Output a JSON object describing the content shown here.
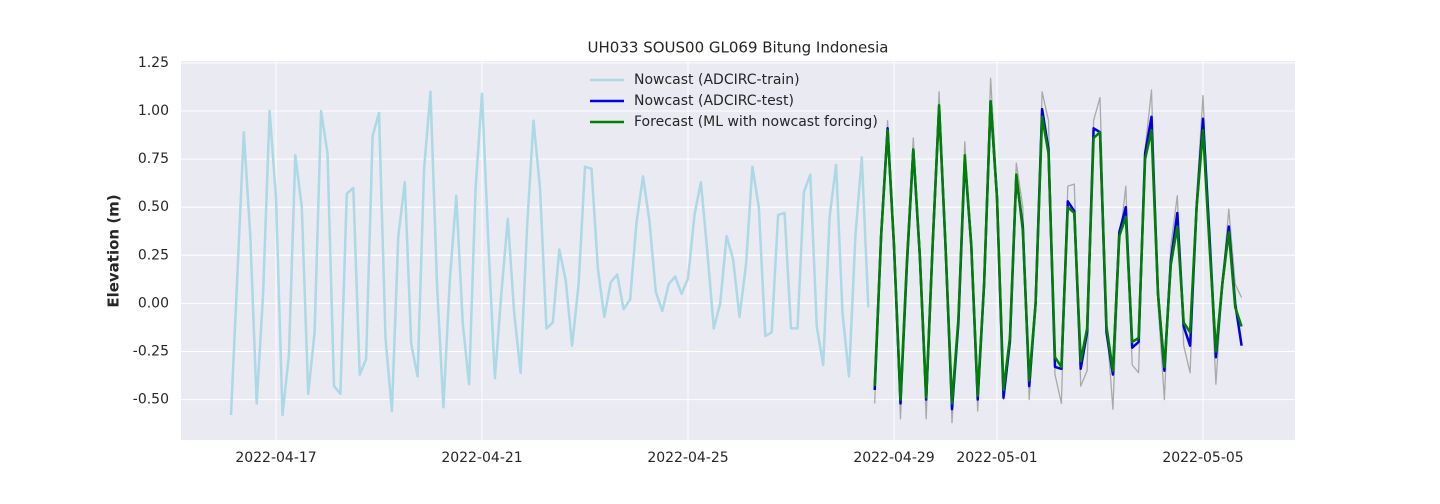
{
  "chart_data": {
    "type": "line",
    "title": "UH033 SOUS00 GL069 Bitung Indonesia",
    "y_label": "Elevation (m)",
    "x": [
      "2022-04-16T03:00",
      "2022-04-16T06:00",
      "2022-04-16T09:00",
      "2022-04-16T12:00",
      "2022-04-16T15:00",
      "2022-04-16T18:00",
      "2022-04-16T21:00",
      "2022-04-17T00:00",
      "2022-04-17T03:00",
      "2022-04-17T06:00",
      "2022-04-17T09:00",
      "2022-04-17T12:00",
      "2022-04-17T15:00",
      "2022-04-17T18:00",
      "2022-04-17T21:00",
      "2022-04-18T00:00",
      "2022-04-18T03:00",
      "2022-04-18T06:00",
      "2022-04-18T09:00",
      "2022-04-18T12:00",
      "2022-04-18T15:00",
      "2022-04-18T18:00",
      "2022-04-18T21:00",
      "2022-04-19T00:00",
      "2022-04-19T03:00",
      "2022-04-19T06:00",
      "2022-04-19T09:00",
      "2022-04-19T12:00",
      "2022-04-19T15:00",
      "2022-04-19T18:00",
      "2022-04-19T21:00",
      "2022-04-20T00:00",
      "2022-04-20T03:00",
      "2022-04-20T06:00",
      "2022-04-20T09:00",
      "2022-04-20T12:00",
      "2022-04-20T15:00",
      "2022-04-20T18:00",
      "2022-04-20T21:00",
      "2022-04-21T00:00",
      "2022-04-21T03:00",
      "2022-04-21T06:00",
      "2022-04-21T09:00",
      "2022-04-21T12:00",
      "2022-04-21T15:00",
      "2022-04-21T18:00",
      "2022-04-21T21:00",
      "2022-04-22T00:00",
      "2022-04-22T03:00",
      "2022-04-22T06:00",
      "2022-04-22T09:00",
      "2022-04-22T12:00",
      "2022-04-22T15:00",
      "2022-04-22T18:00",
      "2022-04-22T21:00",
      "2022-04-23T00:00",
      "2022-04-23T03:00",
      "2022-04-23T06:00",
      "2022-04-23T09:00",
      "2022-04-23T12:00",
      "2022-04-23T15:00",
      "2022-04-23T18:00",
      "2022-04-23T21:00",
      "2022-04-24T00:00",
      "2022-04-24T03:00",
      "2022-04-24T06:00",
      "2022-04-24T09:00",
      "2022-04-24T12:00",
      "2022-04-24T15:00",
      "2022-04-24T18:00",
      "2022-04-24T21:00",
      "2022-04-25T00:00",
      "2022-04-25T03:00",
      "2022-04-25T06:00",
      "2022-04-25T09:00",
      "2022-04-25T12:00",
      "2022-04-25T15:00",
      "2022-04-25T18:00",
      "2022-04-25T21:00",
      "2022-04-26T00:00",
      "2022-04-26T03:00",
      "2022-04-26T06:00",
      "2022-04-26T09:00",
      "2022-04-26T12:00",
      "2022-04-26T15:00",
      "2022-04-26T18:00",
      "2022-04-26T21:00",
      "2022-04-27T00:00",
      "2022-04-27T03:00",
      "2022-04-27T06:00",
      "2022-04-27T09:00",
      "2022-04-27T12:00",
      "2022-04-27T15:00",
      "2022-04-27T18:00",
      "2022-04-27T21:00",
      "2022-04-28T00:00",
      "2022-04-28T03:00",
      "2022-04-28T06:00",
      "2022-04-28T09:00",
      "2022-04-28T12:00",
      "2022-04-28T15:00",
      "2022-04-28T18:00",
      "2022-04-28T21:00",
      "2022-04-29T00:00",
      "2022-04-29T03:00",
      "2022-04-29T06:00",
      "2022-04-29T09:00",
      "2022-04-29T12:00",
      "2022-04-29T15:00",
      "2022-04-29T18:00",
      "2022-04-29T21:00",
      "2022-04-30T00:00",
      "2022-04-30T03:00",
      "2022-04-30T06:00",
      "2022-04-30T09:00",
      "2022-04-30T12:00",
      "2022-04-30T15:00",
      "2022-04-30T18:00",
      "2022-04-30T21:00",
      "2022-05-01T00:00",
      "2022-05-01T03:00",
      "2022-05-01T06:00",
      "2022-05-01T09:00",
      "2022-05-01T12:00",
      "2022-05-01T15:00",
      "2022-05-01T18:00",
      "2022-05-01T21:00",
      "2022-05-02T00:00",
      "2022-05-02T03:00",
      "2022-05-02T06:00",
      "2022-05-02T09:00",
      "2022-05-02T12:00",
      "2022-05-02T15:00",
      "2022-05-02T18:00",
      "2022-05-02T21:00",
      "2022-05-03T00:00",
      "2022-05-03T03:00",
      "2022-05-03T06:00",
      "2022-05-03T09:00",
      "2022-05-03T12:00",
      "2022-05-03T15:00",
      "2022-05-03T18:00",
      "2022-05-03T21:00",
      "2022-05-04T00:00",
      "2022-05-04T03:00",
      "2022-05-04T06:00",
      "2022-05-04T09:00",
      "2022-05-04T12:00",
      "2022-05-04T15:00",
      "2022-05-04T18:00",
      "2022-05-04T21:00",
      "2022-05-05T00:00",
      "2022-05-05T03:00",
      "2022-05-05T06:00",
      "2022-05-05T09:00",
      "2022-05-05T12:00",
      "2022-05-05T15:00",
      "2022-05-05T18:00"
    ],
    "series": [
      {
        "color": "#a9a9a9",
        "values": [
          null,
          null,
          null,
          null,
          null,
          null,
          null,
          null,
          null,
          null,
          null,
          null,
          null,
          null,
          null,
          null,
          null,
          null,
          null,
          null,
          null,
          null,
          null,
          null,
          null,
          null,
          null,
          null,
          null,
          null,
          null,
          null,
          null,
          null,
          null,
          null,
          null,
          null,
          null,
          null,
          null,
          null,
          null,
          null,
          null,
          null,
          null,
          null,
          null,
          null,
          null,
          null,
          null,
          null,
          null,
          null,
          null,
          null,
          null,
          null,
          null,
          null,
          null,
          null,
          null,
          null,
          null,
          null,
          null,
          null,
          null,
          null,
          null,
          null,
          null,
          null,
          null,
          null,
          null,
          null,
          null,
          null,
          null,
          null,
          null,
          null,
          null,
          null,
          null,
          null,
          null,
          null,
          null,
          null,
          null,
          null,
          null,
          null,
          null,
          null,
          -0.52,
          0.4,
          0.95,
          0.25,
          -0.6,
          0.25,
          0.86,
          0.2,
          -0.6,
          0.35,
          1.1,
          0.25,
          -0.62,
          -0.05,
          0.84,
          0.25,
          -0.56,
          0.15,
          1.17,
          0.6,
          -0.5,
          -0.15,
          0.73,
          0.5,
          -0.5,
          0.0,
          1.1,
          0.95,
          -0.37,
          -0.52,
          0.61,
          0.62,
          -0.43,
          -0.35,
          0.95,
          1.07,
          -0.1,
          -0.55,
          0.3,
          0.61,
          -0.32,
          -0.36,
          0.8,
          1.11,
          0.0,
          -0.5,
          0.3,
          0.56,
          -0.22,
          -0.36,
          0.55,
          1.08,
          0.3,
          -0.42,
          0.1,
          0.49,
          0.1,
          0.03
        ]
      },
      {
        "name": "Nowcast (ADCIRC-train)",
        "color": "#add8e6",
        "values": [
          -0.58,
          0.15,
          0.89,
          0.35,
          -0.52,
          0.05,
          1.0,
          0.55,
          -0.58,
          -0.27,
          0.77,
          0.5,
          -0.47,
          -0.15,
          1.0,
          0.78,
          -0.43,
          -0.47,
          0.57,
          0.6,
          -0.37,
          -0.29,
          0.87,
          0.99,
          -0.18,
          -0.56,
          0.35,
          0.63,
          -0.21,
          -0.38,
          0.7,
          1.1,
          0.1,
          -0.54,
          0.12,
          0.56,
          -0.1,
          -0.42,
          0.6,
          1.09,
          0.3,
          -0.39,
          0.05,
          0.44,
          -0.05,
          -0.36,
          0.4,
          0.95,
          0.6,
          -0.13,
          -0.1,
          0.28,
          0.12,
          -0.22,
          0.1,
          0.71,
          0.7,
          0.18,
          -0.07,
          0.11,
          0.15,
          -0.03,
          0.02,
          0.42,
          0.66,
          0.43,
          0.06,
          -0.04,
          0.1,
          0.14,
          0.05,
          0.13,
          0.46,
          0.63,
          0.27,
          -0.13,
          0.0,
          0.35,
          0.23,
          -0.07,
          0.2,
          0.71,
          0.5,
          -0.17,
          -0.15,
          0.46,
          0.47,
          -0.13,
          -0.13,
          0.58,
          0.67,
          -0.12,
          -0.32,
          0.45,
          0.72,
          -0.05,
          -0.38,
          0.35,
          0.76,
          -0.02,
          null,
          null,
          null,
          null,
          null,
          null,
          null,
          null,
          null,
          null,
          null,
          null,
          null,
          null,
          null,
          null,
          null,
          null,
          null,
          null,
          null,
          null,
          null,
          null,
          null,
          null,
          null,
          null,
          null,
          null,
          null,
          null,
          null,
          null,
          null,
          null,
          null,
          null,
          null,
          null,
          null,
          null,
          null,
          null,
          null,
          null,
          null,
          null,
          null,
          null,
          null,
          null,
          null,
          null,
          null,
          null,
          null,
          null
        ]
      },
      {
        "name": "Nowcast (ADCIRC-test)",
        "color": "#0000e0",
        "values": [
          null,
          null,
          null,
          null,
          null,
          null,
          null,
          null,
          null,
          null,
          null,
          null,
          null,
          null,
          null,
          null,
          null,
          null,
          null,
          null,
          null,
          null,
          null,
          null,
          null,
          null,
          null,
          null,
          null,
          null,
          null,
          null,
          null,
          null,
          null,
          null,
          null,
          null,
          null,
          null,
          null,
          null,
          null,
          null,
          null,
          null,
          null,
          null,
          null,
          null,
          null,
          null,
          null,
          null,
          null,
          null,
          null,
          null,
          null,
          null,
          null,
          null,
          null,
          null,
          null,
          null,
          null,
          null,
          null,
          null,
          null,
          null,
          null,
          null,
          null,
          null,
          null,
          null,
          null,
          null,
          null,
          null,
          null,
          null,
          null,
          null,
          null,
          null,
          null,
          null,
          null,
          null,
          null,
          null,
          null,
          null,
          null,
          null,
          null,
          null,
          -0.45,
          0.35,
          0.91,
          0.3,
          -0.52,
          0.2,
          0.8,
          0.25,
          -0.5,
          0.3,
          1.02,
          0.3,
          -0.55,
          -0.1,
          0.75,
          0.3,
          -0.5,
          0.1,
          1.05,
          0.55,
          -0.49,
          -0.2,
          0.66,
          0.4,
          -0.43,
          0.0,
          1.01,
          0.8,
          -0.33,
          -0.34,
          0.53,
          0.48,
          -0.34,
          -0.15,
          0.91,
          0.89,
          -0.15,
          -0.37,
          0.37,
          0.5,
          -0.23,
          -0.2,
          0.78,
          0.97,
          0.05,
          -0.35,
          0.22,
          0.47,
          -0.12,
          -0.22,
          0.5,
          0.96,
          0.35,
          -0.28,
          0.1,
          0.4,
          0.0,
          -0.22
        ]
      },
      {
        "name": "Forecast (ML with nowcast forcing)",
        "color": "#008000",
        "values": [
          null,
          null,
          null,
          null,
          null,
          null,
          null,
          null,
          null,
          null,
          null,
          null,
          null,
          null,
          null,
          null,
          null,
          null,
          null,
          null,
          null,
          null,
          null,
          null,
          null,
          null,
          null,
          null,
          null,
          null,
          null,
          null,
          null,
          null,
          null,
          null,
          null,
          null,
          null,
          null,
          null,
          null,
          null,
          null,
          null,
          null,
          null,
          null,
          null,
          null,
          null,
          null,
          null,
          null,
          null,
          null,
          null,
          null,
          null,
          null,
          null,
          null,
          null,
          null,
          null,
          null,
          null,
          null,
          null,
          null,
          null,
          null,
          null,
          null,
          null,
          null,
          null,
          null,
          null,
          null,
          null,
          null,
          null,
          null,
          null,
          null,
          null,
          null,
          null,
          null,
          null,
          null,
          null,
          null,
          null,
          null,
          null,
          null,
          null,
          null,
          -0.43,
          0.35,
          0.9,
          0.3,
          -0.5,
          0.22,
          0.8,
          0.25,
          -0.49,
          0.3,
          1.03,
          0.3,
          -0.52,
          -0.08,
          0.77,
          0.3,
          -0.48,
          0.1,
          1.05,
          0.55,
          -0.45,
          -0.18,
          0.67,
          0.38,
          -0.4,
          0.0,
          0.97,
          0.78,
          -0.28,
          -0.33,
          0.5,
          0.47,
          -0.3,
          -0.13,
          0.86,
          0.89,
          -0.12,
          -0.35,
          0.35,
          0.45,
          -0.2,
          -0.18,
          0.75,
          0.9,
          0.05,
          -0.33,
          0.2,
          0.4,
          -0.1,
          -0.15,
          0.5,
          0.9,
          0.3,
          -0.25,
          0.1,
          0.37,
          -0.02,
          -0.12
        ]
      }
    ],
    "xlim": [
      "2022-04-15T03:43",
      "2022-05-06T18:52"
    ],
    "xticks": [
      "2022-04-17",
      "2022-04-21",
      "2022-04-25",
      "2022-04-29",
      "2022-05-01",
      "2022-05-05"
    ],
    "ylim": [
      -0.71,
      1.26
    ],
    "yticks": [
      {
        "value": -0.5,
        "label": "-0.50"
      },
      -0.25,
      {
        "value": 0,
        "label": "0.00"
      },
      0.25,
      {
        "value": 0.5,
        "label": "0.50"
      },
      0.75,
      {
        "value": 1,
        "label": "1.00"
      },
      1.25
    ],
    "grid": true,
    "legend": "upper center"
  }
}
